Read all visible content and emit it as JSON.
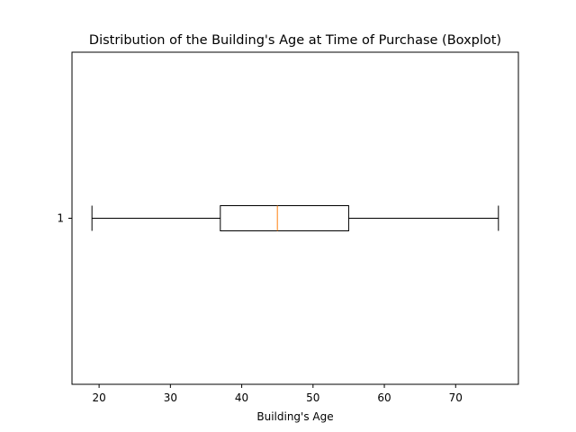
{
  "chart_data": {
    "type": "boxplot",
    "title": "Distribution of the Building's Age at Time of Purchase (Boxplot)",
    "xlabel": "Building's Age",
    "ylabel": "",
    "orientation": "horizontal",
    "xlim": [
      16.2,
      78.8
    ],
    "x_ticks": [
      20,
      30,
      40,
      50,
      60,
      70
    ],
    "y_ticks": [
      "1"
    ],
    "grid": false,
    "boxes": [
      {
        "label": "1",
        "whisker_low": 19,
        "q1": 37,
        "median": 45,
        "q3": 55,
        "whisker_high": 76
      }
    ],
    "colors": {
      "box": "#000000",
      "median": "#ff7f0e"
    }
  }
}
